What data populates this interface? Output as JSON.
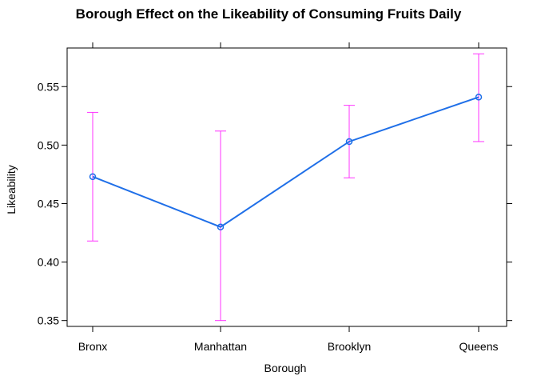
{
  "chart_data": {
    "type": "line",
    "title": "Borough Effect on the Likeability of Consuming Fruits Daily",
    "xlabel": "Borough",
    "ylabel": "Likeability",
    "categories": [
      "Bronx",
      "Manhattan",
      "Brooklyn",
      "Queens"
    ],
    "values": [
      0.473,
      0.43,
      0.503,
      0.541
    ],
    "error_lower": [
      0.418,
      0.35,
      0.472,
      0.503
    ],
    "error_upper": [
      0.528,
      0.512,
      0.534,
      0.578
    ],
    "ylim": [
      0.345,
      0.583
    ],
    "yticks": [
      0.35,
      0.4,
      0.45,
      0.5,
      0.55
    ],
    "ytick_labels": [
      "0.35",
      "0.40",
      "0.45",
      "0.50",
      "0.55"
    ],
    "grid": false,
    "colors": {
      "line": "#1f6fe8",
      "point": "#1f6fe8",
      "error_bar": "#ff33ff",
      "axis": "#000000"
    }
  }
}
